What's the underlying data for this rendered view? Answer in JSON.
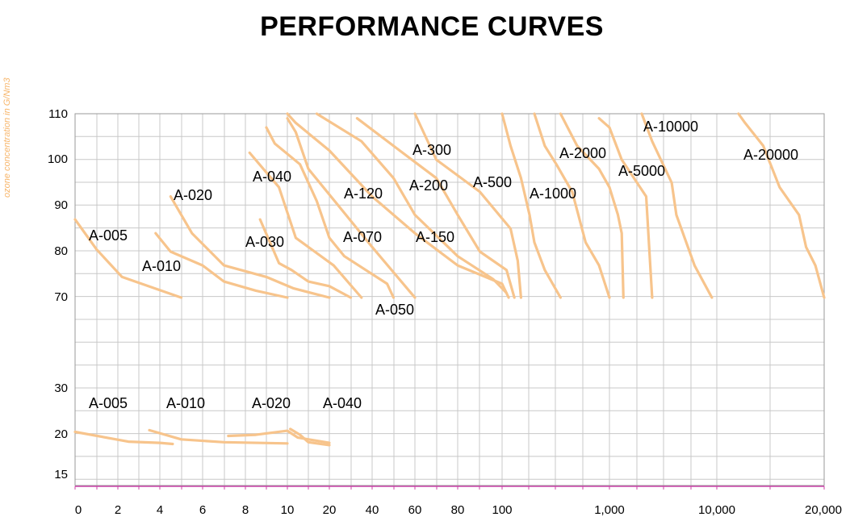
{
  "title": "PERFORMANCE CURVES",
  "side_label": "ozone concentration in G/Nm3",
  "chart_data": {
    "type": "line",
    "title": "PERFORMANCE CURVES",
    "ylabel": "ozone concentration in G/Nm3",
    "xlabel": "",
    "grid": true,
    "legend": "labels placed next to each curve",
    "line_color": "#f7c48c",
    "axis_line_color": "#cc44aa",
    "x_ticks": [
      "0",
      "2",
      "4",
      "6",
      "8",
      "10",
      "20",
      "40",
      "60",
      "80",
      "100",
      "1,000",
      "10,000",
      "20,000"
    ],
    "y_ticks": [
      "110",
      "100",
      "90",
      "80",
      "70",
      "30",
      "20",
      "15"
    ],
    "series": [
      {
        "name": "A-005",
        "points": [
          [
            0,
            87
          ],
          [
            1,
            80.5
          ],
          [
            2.2,
            74.5
          ],
          [
            5,
            70
          ]
        ]
      },
      {
        "name": "A-010",
        "points": [
          [
            3.8,
            84
          ],
          [
            4.5,
            80
          ],
          [
            6,
            77
          ],
          [
            7,
            73.5
          ],
          [
            8.5,
            71.5
          ],
          [
            10,
            70
          ]
        ]
      },
      {
        "name": "A-020",
        "points": [
          [
            4.5,
            92
          ],
          [
            5.5,
            84
          ],
          [
            7,
            77
          ],
          [
            9,
            74.5
          ],
          [
            11.5,
            72
          ],
          [
            20,
            70
          ]
        ]
      },
      {
        "name": "A-030",
        "points": [
          [
            8.7,
            87
          ],
          [
            9.6,
            77.5
          ],
          [
            11,
            76
          ],
          [
            15,
            73.5
          ],
          [
            20,
            72.5
          ],
          [
            30,
            70
          ]
        ]
      },
      {
        "name": "A-040",
        "points": [
          [
            8.2,
            101.5
          ],
          [
            9.6,
            94
          ],
          [
            12,
            83
          ],
          [
            22,
            77
          ],
          [
            35,
            70
          ]
        ]
      },
      {
        "name": "A-050",
        "points": [
          [
            9,
            107
          ],
          [
            9.4,
            103.5
          ],
          [
            13,
            99
          ],
          [
            17,
            91
          ],
          [
            20,
            83
          ],
          [
            27,
            79
          ],
          [
            47,
            73
          ],
          [
            50,
            70
          ]
        ]
      },
      {
        "name": "A-070",
        "points": [
          [
            10,
            109
          ],
          [
            12,
            106
          ],
          [
            15,
            98
          ],
          [
            26,
            89
          ],
          [
            40,
            81
          ],
          [
            60,
            70
          ]
        ]
      },
      {
        "name": "A-120",
        "points": [
          [
            10,
            110
          ],
          [
            12,
            108
          ],
          [
            20,
            102
          ],
          [
            40,
            92
          ],
          [
            60,
            84
          ],
          [
            80,
            77
          ],
          [
            100,
            73
          ],
          [
            115,
            70
          ]
        ]
      },
      {
        "name": "A-150",
        "points": [
          [
            17,
            110
          ],
          [
            35,
            104
          ],
          [
            50,
            96
          ],
          [
            60,
            88
          ],
          [
            80,
            79
          ],
          [
            96,
            74
          ],
          [
            110,
            71
          ]
        ]
      },
      {
        "name": "A-200",
        "points": [
          [
            33,
            109
          ],
          [
            50,
            103
          ],
          [
            70,
            96
          ],
          [
            80,
            88
          ],
          [
            90,
            80
          ],
          [
            110,
            76
          ],
          [
            130,
            70
          ]
        ]
      },
      {
        "name": "A-300",
        "points": [
          [
            60,
            110
          ],
          [
            70,
            100
          ],
          [
            90,
            93
          ],
          [
            120,
            85
          ],
          [
            140,
            78
          ],
          [
            150,
            70
          ]
        ]
      },
      {
        "name": "A-500",
        "points": [
          [
            100,
            110
          ],
          [
            120,
            103
          ],
          [
            150,
            96
          ],
          [
            180,
            88
          ],
          [
            200,
            82
          ],
          [
            250,
            76
          ],
          [
            350,
            70
          ]
        ]
      },
      {
        "name": "A-1000",
        "points": [
          [
            200,
            110
          ],
          [
            250,
            103
          ],
          [
            320,
            99
          ],
          [
            450,
            93
          ],
          [
            600,
            82
          ],
          [
            800,
            77
          ],
          [
            1000,
            70
          ]
        ]
      },
      {
        "name": "A-2000",
        "points": [
          [
            350,
            110
          ],
          [
            500,
            103
          ],
          [
            800,
            98
          ],
          [
            1000,
            94
          ],
          [
            1200,
            88
          ],
          [
            1300,
            84
          ],
          [
            1350,
            70
          ]
        ]
      },
      {
        "name": "A-5000",
        "points": [
          [
            800,
            109
          ],
          [
            1000,
            107
          ],
          [
            1300,
            100
          ],
          [
            2200,
            92
          ],
          [
            2500,
            70
          ]
        ]
      },
      {
        "name": "A-10000",
        "points": [
          [
            2000,
            110
          ],
          [
            2500,
            104
          ],
          [
            3800,
            95
          ],
          [
            4200,
            88
          ],
          [
            6200,
            77
          ],
          [
            9000,
            70
          ]
        ]
      },
      {
        "name": "A-20000",
        "points": [
          [
            11500,
            110
          ],
          [
            12000,
            108
          ],
          [
            13500,
            103
          ],
          [
            15000,
            94
          ],
          [
            17000,
            88
          ],
          [
            17800,
            81
          ],
          [
            18900,
            77
          ],
          [
            20000,
            70
          ]
        ]
      },
      {
        "name": "A-005",
        "points": [
          [
            0,
            22.5
          ],
          [
            2.5,
            20.8
          ],
          [
            4,
            20.6
          ],
          [
            4.6,
            20.4
          ]
        ]
      },
      {
        "name": "A-010",
        "points": [
          [
            3.5,
            22.8
          ],
          [
            5,
            21.2
          ],
          [
            7,
            20.7
          ],
          [
            10,
            20.5
          ]
        ]
      },
      {
        "name": "A-020",
        "points": [
          [
            7.2,
            21.8
          ],
          [
            8.5,
            22
          ],
          [
            10,
            22.7
          ],
          [
            12.5,
            21.5
          ],
          [
            20,
            20.6
          ]
        ]
      },
      {
        "name": "A-040",
        "points": [
          [
            10.7,
            23
          ],
          [
            13,
            22
          ],
          [
            15,
            20.7
          ],
          [
            20,
            20.2
          ]
        ]
      }
    ]
  }
}
